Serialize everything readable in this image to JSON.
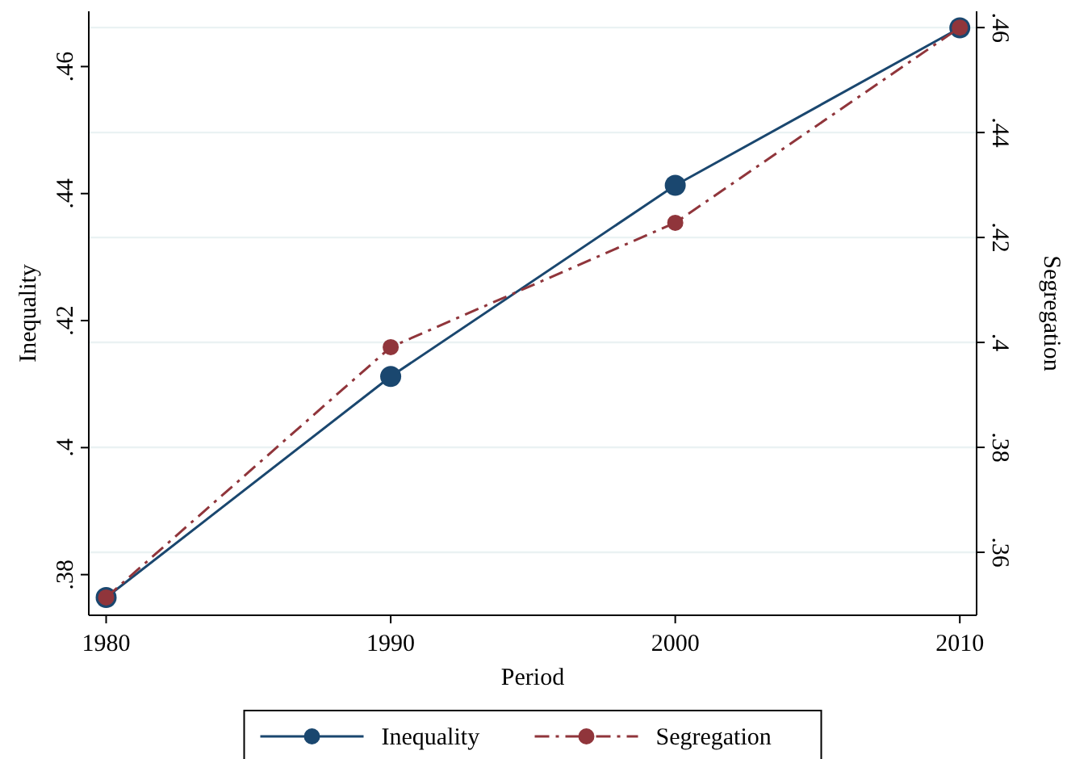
{
  "chart_data": {
    "type": "line",
    "xlabel": "Period",
    "ylabel": "Inequality",
    "y2label": "Segregation",
    "x": [
      1980,
      1990,
      2000,
      2010
    ],
    "series": [
      {
        "name": "Inequality",
        "color": "#1a476f",
        "values": [
          0.3764,
          0.4112,
          0.4413,
          0.4661
        ],
        "line_style": "solid",
        "marker": "circle"
      },
      {
        "name": "Segregation",
        "color": "#90353b",
        "values": [
          0.3514,
          0.3991,
          0.4228,
          0.46
        ],
        "axis": "y2",
        "line_style": "dashdot",
        "marker": "circle"
      }
    ],
    "xlim": [
      1979.39,
      2010.59
    ],
    "xticks": [
      1980,
      1990,
      2000,
      2010
    ],
    "ylim": [
      0.3736,
      0.4687
    ],
    "yticks": [
      {
        "value": 0.38,
        "label": ".38"
      },
      {
        "value": 0.4,
        "label": ".4"
      },
      {
        "value": 0.42,
        "label": ".42"
      },
      {
        "value": 0.44,
        "label": ".44"
      },
      {
        "value": 0.46,
        "label": ".46"
      }
    ],
    "y2lim": [
      0.348,
      0.4631
    ],
    "y2ticks": [
      {
        "value": 0.36,
        "label": ".36"
      },
      {
        "value": 0.38,
        "label": ".38"
      },
      {
        "value": 0.4,
        "label": ".4"
      },
      {
        "value": 0.42,
        "label": ".42"
      },
      {
        "value": 0.44,
        "label": ".44"
      },
      {
        "value": 0.46,
        "label": ".46"
      }
    ],
    "grid": "y2",
    "legend": "bottom"
  }
}
